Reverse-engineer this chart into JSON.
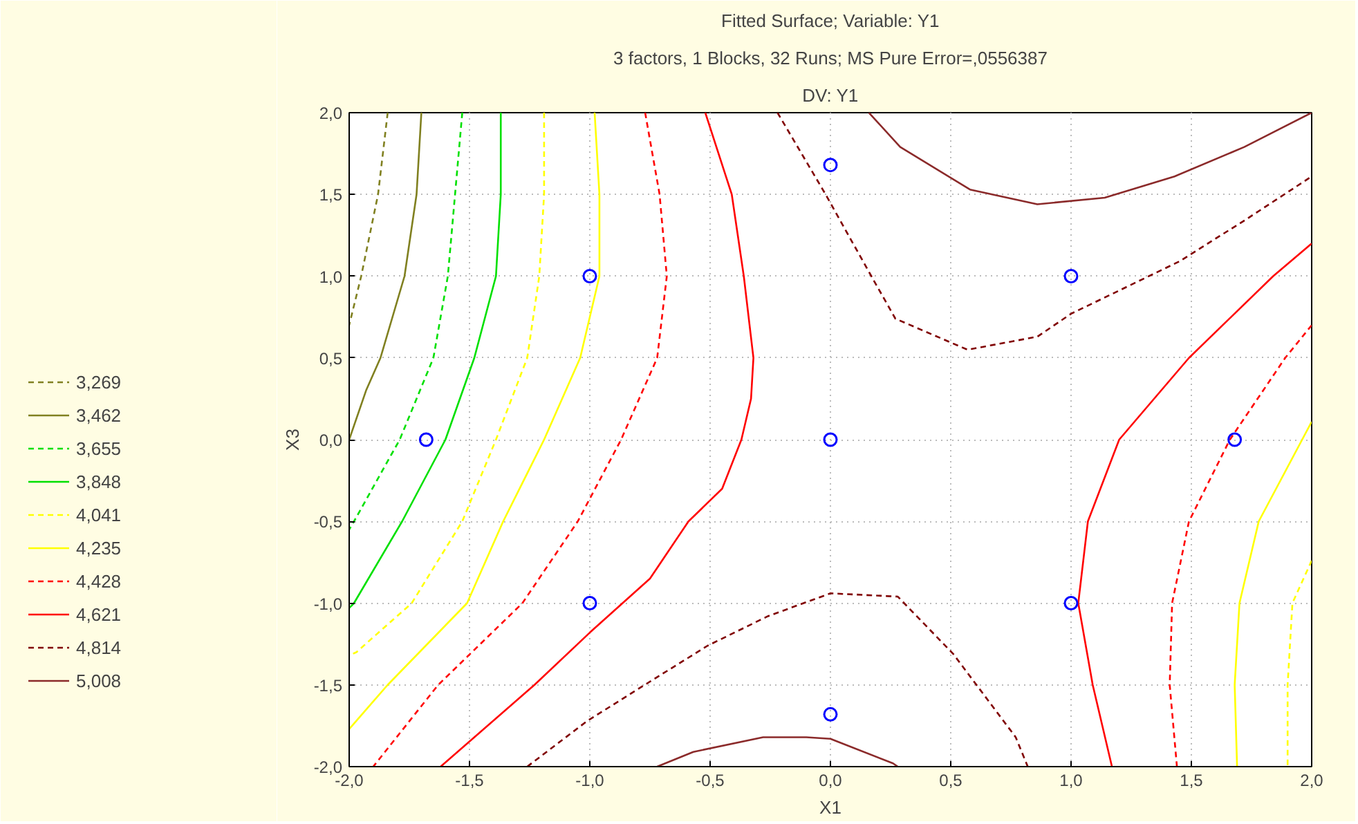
{
  "chart_data": {
    "type": "line",
    "title": "Fitted Surface; Variable: Y1",
    "subtitle": "3 factors, 1 Blocks, 32 Runs; MS Pure Error=,0556387",
    "annotations": [
      "DV: Y1"
    ],
    "xlabel": "X1",
    "ylabel": "X3",
    "xlim": [
      -2,
      2
    ],
    "ylim": [
      -2,
      2
    ],
    "xticks": [
      {
        "value": -2,
        "label": "-2,0"
      },
      {
        "value": -1.5,
        "label": "-1,5"
      },
      {
        "value": -1,
        "label": "-1,0"
      },
      {
        "value": -0.5,
        "label": "-0,5"
      },
      {
        "value": 0,
        "label": "0,0"
      },
      {
        "value": 0.5,
        "label": "0,5"
      },
      {
        "value": 1,
        "label": "1,0"
      },
      {
        "value": 1.5,
        "label": "1,5"
      },
      {
        "value": 2,
        "label": "2,0"
      }
    ],
    "yticks": [
      {
        "value": -2,
        "label": "-2,0"
      },
      {
        "value": -1.5,
        "label": "-1,5"
      },
      {
        "value": -1,
        "label": "-1,0"
      },
      {
        "value": -0.5,
        "label": "-0,5"
      },
      {
        "value": 0,
        "label": "0,0"
      },
      {
        "value": 0.5,
        "label": "0,5"
      },
      {
        "value": 1,
        "label": "1,0"
      },
      {
        "value": 1.5,
        "label": "1,5"
      },
      {
        "value": 2,
        "label": "2,0"
      }
    ],
    "grid": true,
    "legend": "left",
    "marker": "none",
    "series": [
      {
        "name": "3,269",
        "color": "#808020",
        "line_style": "dashed",
        "x": [
          -1.84,
          -1.88,
          -1.95,
          -2.0
        ],
        "values": [
          2.0,
          1.5,
          1.0,
          0.7
        ]
      },
      {
        "name": "3,462",
        "color": "#808020",
        "line_style": "solid",
        "x": [
          -1.7,
          -1.72,
          -1.77,
          -1.87,
          -1.93,
          -2.0
        ],
        "values": [
          2.0,
          1.5,
          1.0,
          0.5,
          0.3,
          0.0
        ]
      },
      {
        "name": "3,655",
        "color": "#00e000",
        "line_style": "dashed",
        "x": [
          -1.53,
          -1.56,
          -1.59,
          -1.65,
          -1.79,
          -1.98,
          -2.0
        ],
        "values": [
          2.0,
          1.5,
          1.0,
          0.5,
          0.0,
          -0.5,
          -0.55
        ]
      },
      {
        "name": "3,848",
        "color": "#00e000",
        "line_style": "solid",
        "x": [
          -1.37,
          -1.37,
          -1.39,
          -1.48,
          -1.6,
          -1.78,
          -1.98,
          -2.0
        ],
        "values": [
          2.0,
          1.5,
          1.0,
          0.5,
          0.0,
          -0.5,
          -1.0,
          -1.03
        ]
      },
      {
        "name": "4,041",
        "color": "#ffff00",
        "line_style": "dashed",
        "x": [
          -1.19,
          -1.19,
          -1.21,
          -1.26,
          -1.39,
          -1.53,
          -1.74,
          -1.97,
          -2.0
        ],
        "values": [
          2.0,
          1.5,
          1.0,
          0.5,
          0.0,
          -0.5,
          -1.0,
          -1.3,
          -1.32
        ]
      },
      {
        "color": "#ffff00",
        "line_style": "dashed",
        "x": [
          2.0,
          1.92,
          1.9,
          1.9
        ],
        "values": [
          -0.74,
          -1.0,
          -1.5,
          -2.0
        ]
      },
      {
        "name": "4,235",
        "color": "#ffff00",
        "line_style": "solid",
        "x": [
          -0.98,
          -0.96,
          -0.96,
          -1.04,
          -1.19,
          -1.36,
          -1.51,
          -1.84,
          -2.0
        ],
        "values": [
          2.0,
          1.5,
          1.0,
          0.5,
          0.0,
          -0.5,
          -1.0,
          -1.5,
          -1.77
        ]
      },
      {
        "color": "#ffff00",
        "line_style": "solid",
        "x": [
          2.0,
          1.78,
          1.7,
          1.68,
          1.69
        ],
        "values": [
          0.11,
          -0.5,
          -1.0,
          -1.5,
          -2.0
        ]
      },
      {
        "name": "4,428",
        "color": "#ff0000",
        "line_style": "dashed",
        "x": [
          -0.77,
          -0.71,
          -0.68,
          -0.72,
          -0.87,
          -1.05,
          -1.28,
          -1.63,
          -1.9
        ],
        "values": [
          2.0,
          1.5,
          1.0,
          0.5,
          0.0,
          -0.5,
          -1.0,
          -1.5,
          -2.0
        ]
      },
      {
        "color": "#ff0000",
        "line_style": "dashed",
        "x": [
          2.0,
          1.89,
          1.66,
          1.49,
          1.42,
          1.41,
          1.44
        ],
        "values": [
          0.7,
          0.5,
          0.0,
          -0.5,
          -1.0,
          -1.5,
          -2.0
        ]
      },
      {
        "name": "4,621",
        "color": "#ff0000",
        "line_style": "solid",
        "x": [
          -0.52,
          -0.41,
          -0.36,
          -0.32,
          -0.33,
          -0.37,
          -0.45,
          -0.59,
          -0.75,
          -1.0,
          -1.23,
          -1.62
        ],
        "values": [
          2.0,
          1.5,
          1.0,
          0.5,
          0.25,
          0.0,
          -0.3,
          -0.5,
          -0.85,
          -1.18,
          -1.5,
          -2.0
        ]
      },
      {
        "color": "#ff0000",
        "line_style": "solid",
        "x": [
          2.0,
          1.84,
          1.49,
          1.2,
          1.07,
          1.03,
          1.09,
          1.17
        ],
        "values": [
          1.2,
          1.0,
          0.5,
          0.0,
          -0.5,
          -1.0,
          -1.5,
          -2.0
        ]
      },
      {
        "name": "4,814",
        "color": "#800000",
        "line_style": "dashed",
        "x": [
          -0.22,
          -0.02,
          0.17,
          0.27,
          0.57,
          0.86,
          1.0,
          1.45,
          1.72,
          2.0
        ],
        "values": [
          2.0,
          1.5,
          1.0,
          0.74,
          0.55,
          0.63,
          0.77,
          1.09,
          1.34,
          1.61
        ]
      },
      {
        "color": "#800000",
        "line_style": "dashed",
        "x": [
          -1.26,
          -1.01,
          -0.75,
          -0.51,
          -0.26,
          0.0,
          0.28,
          0.51,
          0.77,
          0.82
        ],
        "values": [
          -2.0,
          -1.72,
          -1.48,
          -1.26,
          -1.08,
          -0.94,
          -0.96,
          -1.31,
          -1.82,
          -2.0
        ]
      },
      {
        "name": "5,008",
        "color": "#8b2a2a",
        "line_style": "solid",
        "x": [
          0.16,
          0.29,
          0.58,
          0.86,
          1.14,
          1.43,
          1.72,
          2.0
        ],
        "values": [
          2.0,
          1.79,
          1.53,
          1.44,
          1.48,
          1.61,
          1.79,
          2.0
        ]
      },
      {
        "color": "#8b2a2a",
        "line_style": "solid",
        "x": [
          -0.72,
          -0.57,
          -0.28,
          -0.1,
          0.0,
          0.26,
          0.28
        ],
        "values": [
          -2.0,
          -1.91,
          -1.82,
          -1.82,
          -1.83,
          -1.98,
          -2.0
        ]
      },
      {
        "type": "scatter",
        "marker": "circle",
        "color": "#0000ff",
        "x": [
          -1,
          -1.68,
          -1,
          0,
          0,
          0,
          1,
          1.68,
          1
        ],
        "values": [
          1,
          0,
          -1,
          1.68,
          0,
          -1.68,
          1,
          0,
          -1
        ]
      }
    ]
  }
}
